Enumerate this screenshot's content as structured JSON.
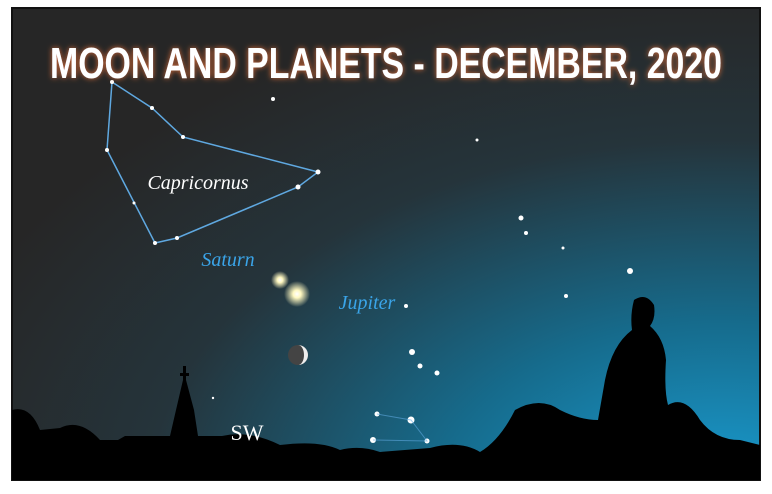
{
  "title": "MOON AND PLANETS - DECEMBER, 2020",
  "labels": {
    "constellation": "Capricornus",
    "saturn": "Saturn",
    "jupiter": "Jupiter",
    "direction": "SW"
  }
}
